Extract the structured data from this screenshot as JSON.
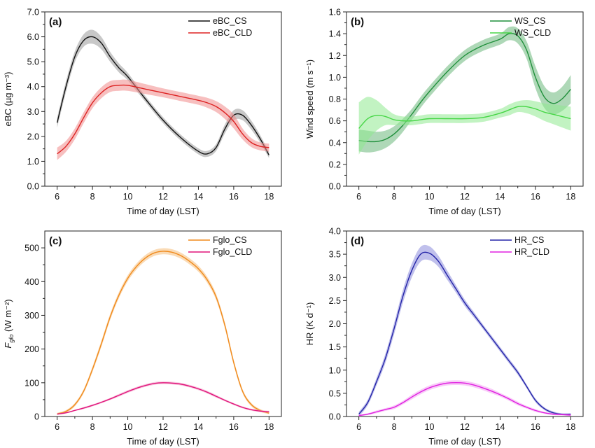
{
  "chart_data": [
    {
      "type": "line",
      "panel_label": "(a)",
      "xlabel": "Time of day (LST)",
      "ylabel": "eBC (µg m⁻³)",
      "xlim": [
        5.3,
        18.7
      ],
      "ylim": [
        0,
        7
      ],
      "xticks": [
        6,
        8,
        10,
        12,
        14,
        16,
        18
      ],
      "yticks": [
        0,
        1,
        2,
        3,
        4,
        5,
        6,
        7
      ],
      "ytick_decimals": 1,
      "legend": "top-right",
      "series": [
        {
          "name": "eBC_CS",
          "color": "#111111",
          "band_color": "#9a9a9a",
          "x": [
            6,
            6.5,
            7,
            7.5,
            8,
            8.5,
            9,
            9.5,
            10,
            11,
            12,
            13,
            14,
            14.5,
            15,
            15.5,
            16,
            16.5,
            17,
            17.5,
            18
          ],
          "y": [
            2.55,
            4.0,
            5.2,
            5.85,
            6.0,
            5.75,
            5.2,
            4.75,
            4.4,
            3.5,
            2.65,
            1.95,
            1.4,
            1.3,
            1.55,
            2.3,
            2.85,
            2.85,
            2.45,
            1.9,
            1.25
          ],
          "band": [
            0.2,
            0.22,
            0.22,
            0.25,
            0.28,
            0.25,
            0.2,
            0.18,
            0.15,
            0.12,
            0.12,
            0.12,
            0.12,
            0.12,
            0.14,
            0.18,
            0.2,
            0.2,
            0.18,
            0.15,
            0.12
          ]
        },
        {
          "name": "eBC_CLD",
          "color": "#dd2222",
          "band_color": "#f08a8a",
          "x": [
            6,
            6.5,
            7,
            7.5,
            8,
            8.5,
            9,
            9.5,
            10,
            11,
            12,
            13,
            14,
            14.5,
            15,
            15.5,
            16,
            16.5,
            17,
            17.5,
            18
          ],
          "y": [
            1.3,
            1.6,
            2.1,
            2.75,
            3.35,
            3.75,
            4.0,
            4.05,
            4.05,
            3.9,
            3.75,
            3.6,
            3.45,
            3.35,
            3.2,
            2.95,
            2.6,
            2.1,
            1.75,
            1.6,
            1.55
          ],
          "band": [
            0.25,
            0.22,
            0.22,
            0.22,
            0.22,
            0.22,
            0.22,
            0.22,
            0.22,
            0.2,
            0.18,
            0.18,
            0.18,
            0.2,
            0.22,
            0.25,
            0.28,
            0.22,
            0.18,
            0.16,
            0.16
          ]
        }
      ]
    },
    {
      "type": "line",
      "panel_label": "(b)",
      "xlabel": "Time of day (LST)",
      "ylabel": "Wind speed (m s⁻¹)",
      "xlim": [
        5.3,
        18.7
      ],
      "ylim": [
        0,
        1.6
      ],
      "xticks": [
        6,
        8,
        10,
        12,
        14,
        16,
        18
      ],
      "yticks": [
        0,
        0.2,
        0.4,
        0.6,
        0.8,
        1.0,
        1.2,
        1.4,
        1.6
      ],
      "ytick_decimals": 1,
      "legend": "top-right",
      "series": [
        {
          "name": "WS_CS",
          "color": "#1f8f3a",
          "band_color": "#6cb87c",
          "x": [
            6,
            6.5,
            7,
            7.5,
            8,
            8.5,
            9,
            9.5,
            10,
            11,
            12,
            13,
            14,
            14.5,
            15,
            15.5,
            16,
            16.5,
            17,
            17.5,
            18
          ],
          "y": [
            0.42,
            0.41,
            0.41,
            0.43,
            0.48,
            0.56,
            0.66,
            0.77,
            0.87,
            1.05,
            1.2,
            1.29,
            1.35,
            1.4,
            1.38,
            1.25,
            1.0,
            0.82,
            0.76,
            0.8,
            0.89
          ],
          "band": [
            0.1,
            0.1,
            0.09,
            0.08,
            0.07,
            0.06,
            0.05,
            0.05,
            0.05,
            0.05,
            0.05,
            0.05,
            0.05,
            0.06,
            0.07,
            0.08,
            0.1,
            0.1,
            0.1,
            0.11,
            0.13
          ]
        },
        {
          "name": "WS_CLD",
          "color": "#46d646",
          "band_color": "#8fe98f",
          "x": [
            6,
            6.5,
            7,
            7.5,
            8,
            8.5,
            9,
            9.5,
            10,
            11,
            12,
            13,
            14,
            14.5,
            15,
            15.5,
            16,
            16.5,
            17,
            17.5,
            18
          ],
          "y": [
            0.53,
            0.62,
            0.65,
            0.64,
            0.61,
            0.6,
            0.6,
            0.61,
            0.62,
            0.62,
            0.62,
            0.63,
            0.67,
            0.7,
            0.73,
            0.73,
            0.71,
            0.68,
            0.66,
            0.64,
            0.62
          ],
          "band": [
            0.24,
            0.2,
            0.14,
            0.08,
            0.05,
            0.04,
            0.04,
            0.04,
            0.04,
            0.04,
            0.04,
            0.04,
            0.04,
            0.05,
            0.05,
            0.06,
            0.07,
            0.08,
            0.09,
            0.1,
            0.11
          ]
        }
      ]
    },
    {
      "type": "line",
      "panel_label": "(c)",
      "xlabel": "Time of day (LST)",
      "ylabel_main": "F",
      "ylabel_sub": "glo",
      "ylabel_rest": " (W m⁻²)",
      "xlim": [
        5.3,
        18.7
      ],
      "ylim": [
        0,
        550
      ],
      "xticks": [
        6,
        8,
        10,
        12,
        14,
        16,
        18
      ],
      "yticks": [
        0,
        100,
        200,
        300,
        400,
        500
      ],
      "ytick_decimals": 0,
      "legend": "top-right",
      "series": [
        {
          "name": "Fglo_CS",
          "color": "#f08a1c",
          "band_color": "#f6bd7a",
          "x": [
            6,
            6.5,
            7,
            7.5,
            8,
            8.5,
            9,
            9.5,
            10,
            10.5,
            11,
            11.5,
            12,
            12.5,
            13,
            13.5,
            14,
            14.5,
            15,
            15.5,
            16,
            16.5,
            17,
            17.5,
            18
          ],
          "y": [
            8,
            15,
            35,
            75,
            140,
            215,
            295,
            360,
            410,
            445,
            470,
            485,
            490,
            487,
            477,
            460,
            438,
            405,
            355,
            270,
            160,
            75,
            35,
            18,
            10
          ],
          "band": [
            3,
            4,
            5,
            6,
            8,
            9,
            9,
            9,
            9,
            9,
            9,
            9,
            9,
            9,
            9,
            9,
            9,
            9,
            9,
            9,
            8,
            6,
            5,
            4,
            3
          ]
        },
        {
          "name": "Fglo_CLD",
          "color": "#e0147a",
          "band_color": "#f29ac6",
          "x": [
            6,
            6.5,
            7,
            7.5,
            8,
            8.5,
            9,
            9.5,
            10,
            10.5,
            11,
            11.5,
            12,
            12.5,
            13,
            13.5,
            14,
            14.5,
            15,
            15.5,
            16,
            16.5,
            17,
            17.5,
            18
          ],
          "y": [
            7,
            11,
            18,
            25,
            33,
            42,
            52,
            63,
            74,
            84,
            92,
            98,
            100,
            99,
            96,
            90,
            82,
            72,
            60,
            48,
            37,
            27,
            20,
            16,
            14
          ],
          "band": [
            2,
            2,
            2,
            3,
            3,
            3,
            3,
            4,
            4,
            4,
            4,
            4,
            4,
            4,
            4,
            4,
            4,
            4,
            4,
            3,
            3,
            3,
            3,
            3,
            3
          ]
        }
      ]
    },
    {
      "type": "line",
      "panel_label": "(d)",
      "xlabel": "Time of day (LST)",
      "ylabel": "HR (K d⁻¹)",
      "xlim": [
        5.3,
        18.7
      ],
      "ylim": [
        0,
        4
      ],
      "xticks": [
        6,
        8,
        10,
        12,
        14,
        16,
        18
      ],
      "yticks": [
        0,
        0.5,
        1.0,
        1.5,
        2.0,
        2.5,
        3.0,
        3.5,
        4.0
      ],
      "ytick_decimals": 1,
      "legend": "top-right",
      "series": [
        {
          "name": "HR_CS",
          "color": "#2424a8",
          "band_color": "#8c8cdc",
          "x": [
            6,
            6.5,
            7,
            7.5,
            8,
            8.5,
            9,
            9.5,
            10,
            10.5,
            11,
            11.5,
            12,
            12.5,
            13,
            13.5,
            14,
            14.5,
            15,
            15.5,
            16,
            16.5,
            17,
            17.5,
            18
          ],
          "y": [
            0.05,
            0.3,
            0.75,
            1.25,
            1.9,
            2.6,
            3.15,
            3.5,
            3.52,
            3.35,
            3.05,
            2.75,
            2.45,
            2.2,
            1.95,
            1.7,
            1.45,
            1.2,
            0.95,
            0.65,
            0.35,
            0.17,
            0.08,
            0.05,
            0.05
          ],
          "band": [
            0.05,
            0.06,
            0.08,
            0.1,
            0.12,
            0.14,
            0.15,
            0.16,
            0.15,
            0.12,
            0.1,
            0.08,
            0.07,
            0.06,
            0.05,
            0.05,
            0.05,
            0.05,
            0.05,
            0.04,
            0.04,
            0.03,
            0.03,
            0.02,
            0.02
          ]
        },
        {
          "name": "HR_CLD",
          "color": "#e020e0",
          "band_color": "#f2a0f2",
          "x": [
            6,
            6.5,
            7,
            7.5,
            8,
            8.5,
            9,
            9.5,
            10,
            10.5,
            11,
            11.5,
            12,
            12.5,
            13,
            13.5,
            14,
            14.5,
            15,
            15.5,
            16,
            16.5,
            17,
            17.5,
            18
          ],
          "y": [
            0.02,
            0.05,
            0.1,
            0.15,
            0.2,
            0.3,
            0.42,
            0.53,
            0.62,
            0.68,
            0.72,
            0.73,
            0.72,
            0.68,
            0.62,
            0.55,
            0.47,
            0.38,
            0.28,
            0.2,
            0.13,
            0.08,
            0.05,
            0.04,
            0.03
          ],
          "band": [
            0.02,
            0.02,
            0.03,
            0.03,
            0.04,
            0.04,
            0.05,
            0.05,
            0.05,
            0.05,
            0.05,
            0.05,
            0.05,
            0.05,
            0.05,
            0.05,
            0.04,
            0.04,
            0.04,
            0.03,
            0.03,
            0.02,
            0.02,
            0.02,
            0.02
          ]
        }
      ]
    }
  ]
}
